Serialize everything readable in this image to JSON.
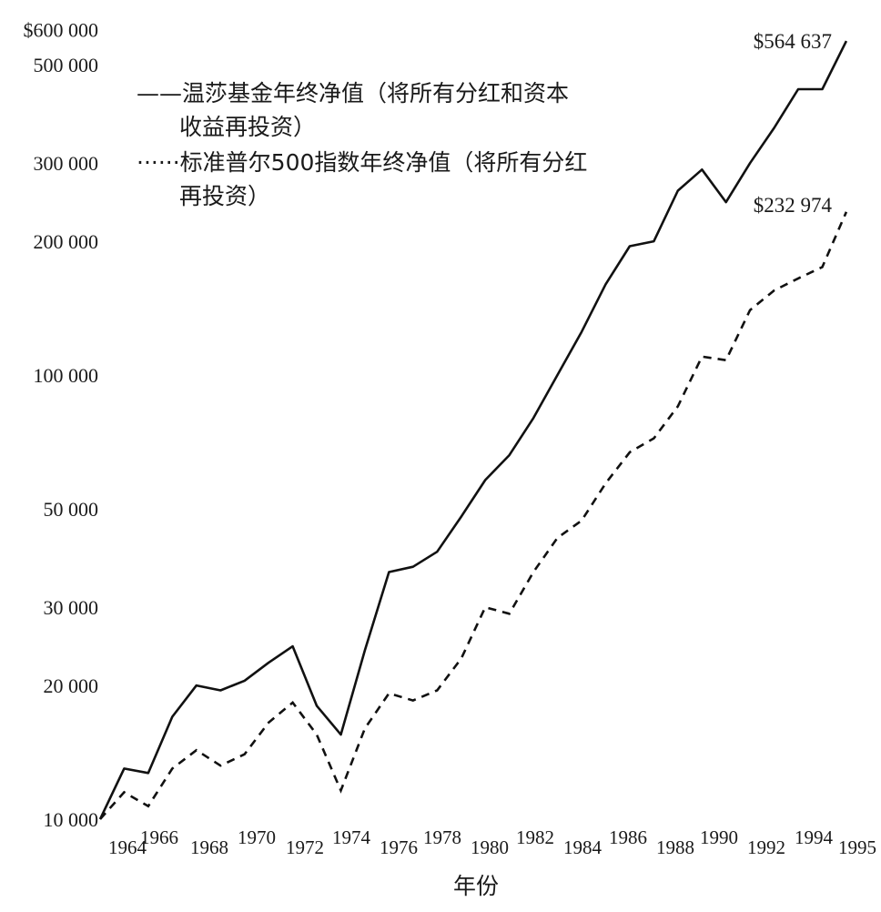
{
  "chart_data": {
    "type": "line",
    "title": "",
    "xlabel": "年份",
    "ylabel": "",
    "yscale": "log",
    "ylim": [
      10000,
      600000
    ],
    "xlim": [
      1964,
      1995
    ],
    "grid": false,
    "legend_position": "upper-left",
    "y_ticks": [
      {
        "value": 600000,
        "label": "$600 000"
      },
      {
        "value": 500000,
        "label": "500 000"
      },
      {
        "value": 300000,
        "label": "300 000"
      },
      {
        "value": 200000,
        "label": "200 000"
      },
      {
        "value": 100000,
        "label": "100 000"
      },
      {
        "value": 50000,
        "label": "50 000"
      },
      {
        "value": 30000,
        "label": "30 000"
      },
      {
        "value": 20000,
        "label": "20 000"
      },
      {
        "value": 10000,
        "label": "10 000"
      }
    ],
    "x_ticks": [
      "1964",
      "1966",
      "1968",
      "1970",
      "1972",
      "1974",
      "1976",
      "1978",
      "1980",
      "1982",
      "1984",
      "1986",
      "1988",
      "1990",
      "1992",
      "1994",
      "1995"
    ],
    "x": [
      1964,
      1965,
      1966,
      1967,
      1968,
      1969,
      1970,
      1971,
      1972,
      1973,
      1974,
      1975,
      1976,
      1977,
      1978,
      1979,
      1980,
      1981,
      1982,
      1983,
      1984,
      1985,
      1986,
      1987,
      1988,
      1989,
      1990,
      1991,
      1992,
      1993,
      1994,
      1995
    ],
    "series": [
      {
        "name": "温莎基金年终净值（将所有分红和资本收益再投资）",
        "style": "solid",
        "values": [
          10000,
          13000,
          12700,
          17000,
          20000,
          19500,
          20500,
          22500,
          24500,
          18000,
          15500,
          24000,
          36000,
          37000,
          40000,
          48000,
          58000,
          66000,
          80000,
          100000,
          125000,
          160000,
          195000,
          200000,
          260000,
          290000,
          245000,
          300000,
          360000,
          440000,
          440000,
          564637
        ]
      },
      {
        "name": "标准普尔500指数年终净值（将所有分红再投资）",
        "style": "dotted",
        "values": [
          10000,
          11500,
          10700,
          13000,
          14300,
          13200,
          14000,
          16500,
          18300,
          15500,
          11600,
          16000,
          19200,
          18500,
          19500,
          23000,
          30000,
          29000,
          36000,
          43000,
          47000,
          57000,
          67000,
          72000,
          85000,
          110000,
          108000,
          140000,
          155000,
          165000,
          175000,
          232974
        ]
      }
    ],
    "annotations": [
      {
        "text": "$564 637",
        "series": 0,
        "x": 1995
      },
      {
        "text": "$232 974",
        "series": 1,
        "x": 1995
      }
    ],
    "legend": {
      "solid_lines": [
        "——温莎基金年终净值（将所有分红和资本",
        "收益再投资）"
      ],
      "dotted_lines": [
        "······标准普尔500指数年终净值（将所有分红",
        "再投资）"
      ]
    }
  }
}
